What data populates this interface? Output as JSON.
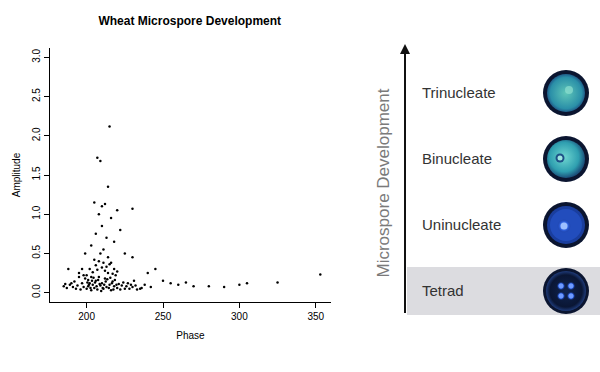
{
  "chart_data": {
    "type": "scatter",
    "title": "Wheat Microspore Development",
    "x_label": "Phase",
    "y_label": "Amplitude",
    "x": [
      200,
      201,
      202,
      203,
      204,
      205,
      206,
      207,
      208,
      209,
      210,
      211,
      212,
      213,
      214,
      215,
      216,
      217,
      218,
      219,
      220,
      221,
      222,
      223,
      224,
      225,
      198,
      197,
      196,
      199,
      200,
      202,
      204,
      206,
      208,
      210,
      212,
      214,
      216,
      218,
      220,
      205,
      209,
      211,
      213,
      207,
      215,
      217,
      203,
      201,
      209.5,
      210.5,
      211.5,
      212.5,
      208.5,
      207.5,
      206.5,
      205.5,
      213.5,
      214.5,
      215.5,
      216.5,
      217.5,
      218.5,
      219.5,
      204.5,
      203.5,
      202.5,
      201.5,
      200.5,
      226,
      227,
      228,
      229,
      230,
      232,
      231,
      233,
      236,
      238,
      194,
      193,
      192,
      191,
      189,
      187,
      186,
      195,
      197,
      198,
      215,
      207,
      209,
      214,
      205,
      212,
      210,
      220,
      208,
      216,
      230,
      222,
      206,
      213,
      218,
      203,
      211,
      225,
      199,
      230,
      240,
      245,
      250,
      255,
      260,
      265,
      270,
      280,
      290,
      300,
      305,
      325,
      353,
      185,
      190,
      195,
      188,
      235,
      242,
      210
    ],
    "values": [
      0.05,
      0.08,
      0.12,
      0.03,
      0.1,
      0.06,
      0.15,
      0.04,
      0.2,
      0.09,
      0.12,
      0.05,
      0.18,
      0.07,
      0.25,
      0.1,
      0.03,
      0.14,
      0.08,
      0.22,
      0.06,
      0.11,
      0.04,
      0.09,
      0.13,
      0.05,
      0.07,
      0.12,
      0.04,
      0.18,
      0.22,
      0.3,
      0.26,
      0.35,
      0.4,
      0.32,
      0.28,
      0.45,
      0.38,
      0.3,
      0.27,
      0.42,
      0.5,
      0.38,
      0.33,
      0.29,
      0.36,
      0.24,
      0.2,
      0.16,
      0.02,
      0.06,
      0.1,
      0.14,
      0.11,
      0.16,
      0.08,
      0.13,
      0.17,
      0.06,
      0.19,
      0.12,
      0.04,
      0.16,
      0.1,
      0.19,
      0.15,
      0.06,
      0.1,
      0.13,
      0.08,
      0.12,
      0.05,
      0.1,
      0.07,
      0.09,
      0.15,
      0.04,
      0.06,
      0.1,
      0.09,
      0.05,
      0.14,
      0.07,
      0.1,
      0.06,
      0.11,
      0.25,
      0.3,
      0.22,
      2.12,
      1.72,
      1.68,
      1.35,
      1.15,
      1.13,
      1.1,
      1.05,
      1.0,
      0.95,
      1.07,
      0.8,
      0.75,
      0.7,
      0.65,
      0.6,
      0.55,
      0.5,
      0.5,
      0.45,
      0.25,
      0.3,
      0.15,
      0.12,
      0.1,
      0.13,
      0.08,
      0.08,
      0.07,
      0.1,
      0.12,
      0.13,
      0.23,
      0.08,
      0.12,
      0.2,
      0.3,
      0.05,
      0.07,
      0.85
    ],
    "color": "#000000",
    "marker": "circle",
    "xlim": [
      176,
      360
    ],
    "xticks": [
      200,
      250,
      300,
      350
    ],
    "ylim": [
      -0.12,
      3.12
    ],
    "yticks": [
      {
        "value": 0,
        "label": "0.0"
      },
      {
        "value": 0.5,
        "label": "0.5"
      },
      {
        "value": 1,
        "label": "1.0"
      },
      {
        "value": 1.5,
        "label": "1.5"
      },
      {
        "value": 2,
        "label": "2.0"
      },
      {
        "value": 2.5,
        "label": "2.5"
      },
      {
        "value": 3,
        "label": "3.0"
      }
    ],
    "grid": false
  },
  "diagram": {
    "axis_label": "Microspore Development",
    "stages": [
      "Trinucleate",
      "Binucleate",
      "Uninucleate",
      "Tetrad"
    ],
    "highlighted": "Tetrad"
  }
}
